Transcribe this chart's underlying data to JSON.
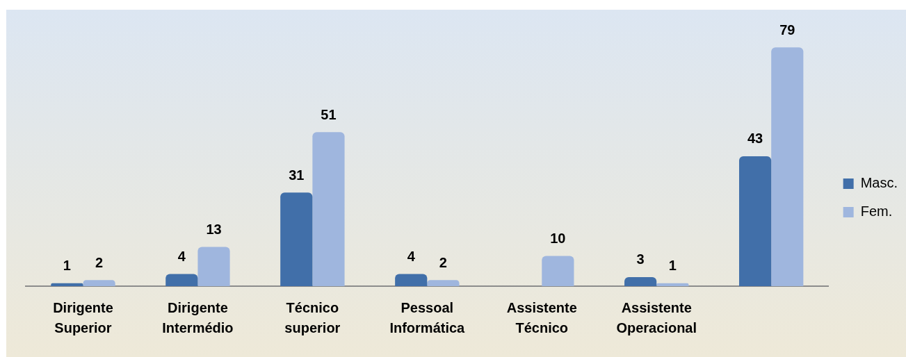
{
  "chart_data": {
    "type": "bar",
    "categories": [
      "Dirigente Superior",
      "Dirigente Intermédio",
      "Técnico superior",
      "Pessoal Informática",
      "Assistente Técnico",
      "Assistente Operacional",
      null
    ],
    "series": [
      {
        "name": "Masc.",
        "color": "#416fa9",
        "values": [
          1,
          4,
          31,
          4,
          null,
          3,
          43
        ]
      },
      {
        "name": "Fem.",
        "color": "#9fb6de",
        "values": [
          2,
          13,
          51,
          2,
          10,
          1,
          79
        ]
      }
    ],
    "data_labels": true,
    "legend": "right",
    "tick_labels": "x"
  }
}
